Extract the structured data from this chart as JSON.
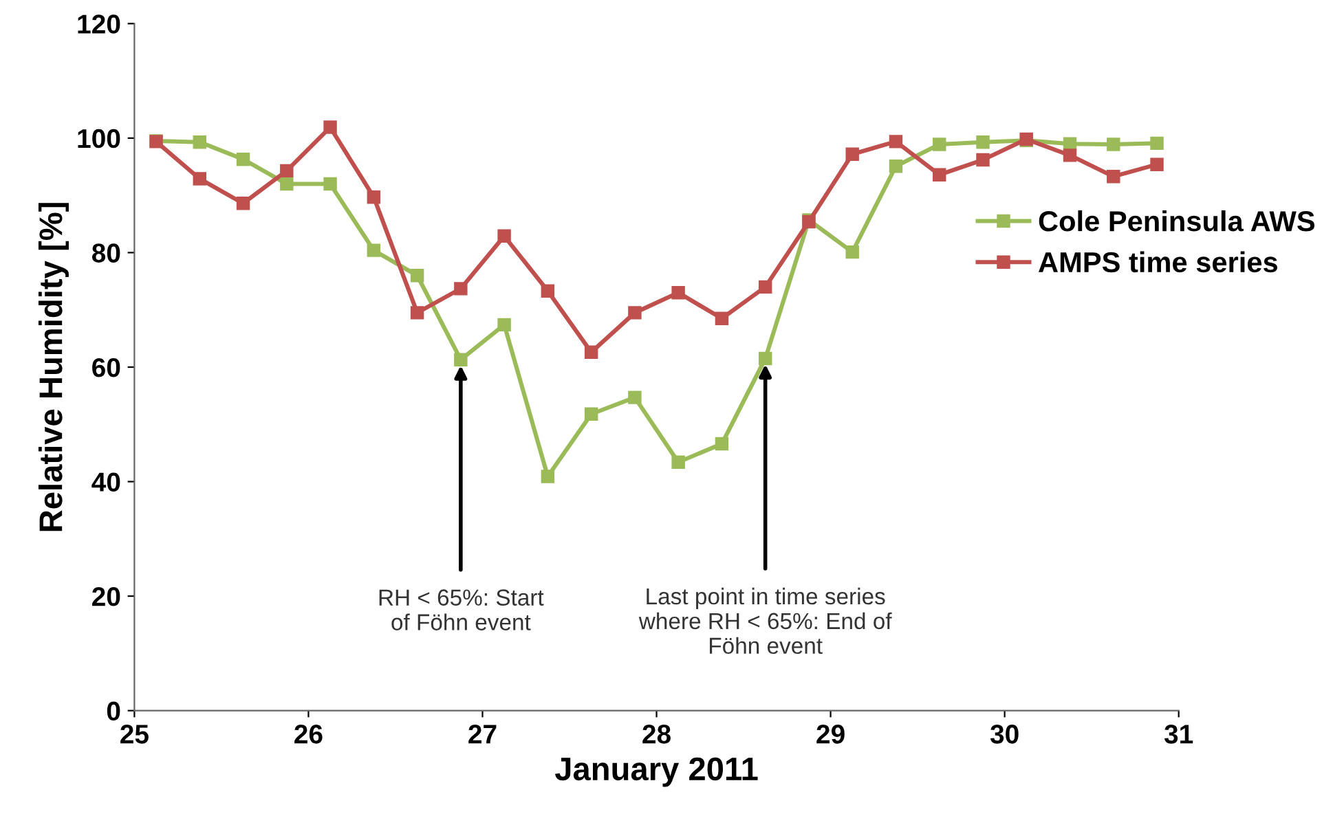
{
  "chart_data": {
    "type": "line",
    "xlabel": "January 2011",
    "ylabel": "Relative Humidity [%]",
    "xlim": [
      25,
      31
    ],
    "xticks": [
      25,
      26,
      27,
      28,
      29,
      30,
      31
    ],
    "ylim": [
      0,
      120
    ],
    "yticks": [
      0,
      20,
      40,
      60,
      80,
      100,
      120
    ],
    "grid": false,
    "legend": "right",
    "marker": "square",
    "line_style": "solid",
    "series": [
      {
        "name": "Cole Peninsula AWS",
        "color": "#9bbb59",
        "x": [
          25.125,
          25.375,
          25.625,
          25.875,
          26.125,
          26.375,
          26.625,
          26.875,
          27.125,
          27.375,
          27.625,
          27.875,
          28.125,
          28.375,
          28.625,
          28.875,
          29.125,
          29.375,
          29.625,
          29.875,
          30.125,
          30.375,
          30.625,
          30.875
        ],
        "values": [
          99.5,
          99.3,
          96.3,
          92.0,
          92.0,
          80.4,
          76.0,
          61.3,
          67.4,
          40.9,
          51.8,
          54.7,
          43.4,
          46.6,
          61.5,
          85.7,
          80.1,
          95.1,
          98.9,
          99.3,
          99.6,
          99.0,
          98.9,
          99.1
        ]
      },
      {
        "name": "AMPS time series",
        "color": "#c0504d",
        "x": [
          25.125,
          25.375,
          25.625,
          25.875,
          26.125,
          26.375,
          26.625,
          26.875,
          27.125,
          27.375,
          27.625,
          27.875,
          28.125,
          28.375,
          28.625,
          28.875,
          29.125,
          29.375,
          29.625,
          29.875,
          30.125,
          30.375,
          30.625,
          30.875
        ],
        "values": [
          99.4,
          92.9,
          88.6,
          94.3,
          101.9,
          89.7,
          69.5,
          73.7,
          82.9,
          73.3,
          62.6,
          69.5,
          73.0,
          68.5,
          74.0,
          85.4,
          97.2,
          99.4,
          93.6,
          96.2,
          99.8,
          97.0,
          93.3,
          95.4
        ]
      }
    ],
    "annotations": [
      {
        "text": "RH < 65%: Start\nof Föhn event",
        "x": 26.875,
        "y": 61.3
      },
      {
        "text": "Last point in time series\nwhere RH < 65%: End of\nFöhn event",
        "x": 28.625,
        "y": 61.5
      }
    ]
  }
}
